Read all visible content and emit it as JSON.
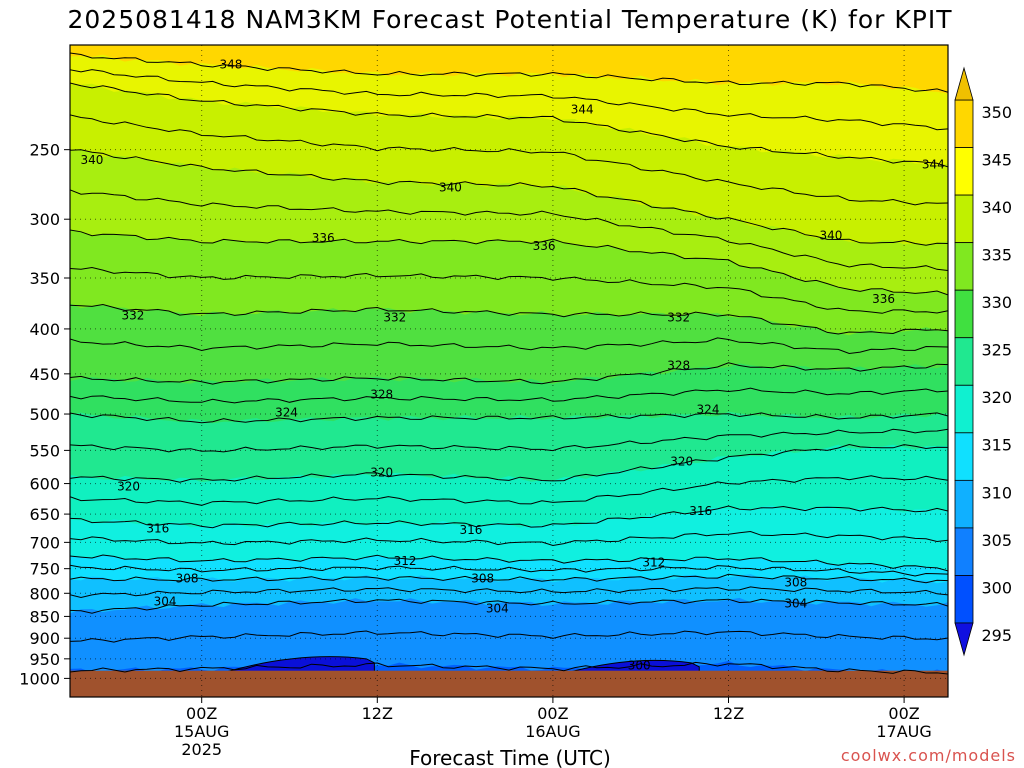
{
  "title": "2025081418 NAM3KM Forecast Potential Temperature (K) for KPIT",
  "credit": "coolwx.com/models",
  "colors": {
    "ground": "#a0522d",
    "fills": [
      "#1010e0",
      "#0050ff",
      "#1080ff",
      "#10b0ff",
      "#10e0ff",
      "#10ffd0",
      "#10f0a0",
      "#20e060",
      "#40e040",
      "#90f020",
      "#c0f000",
      "#ffff00",
      "#ffd700"
    ]
  },
  "chart_data": {
    "type": "heatmap",
    "title": "2025081418 NAM3KM Forecast Potential Temperature (K) for KPIT",
    "xlabel": "Forecast Time (UTC)",
    "ylabel": "",
    "x_axis": {
      "unit": "forecast hour",
      "range_hours": [
        -3,
        57
      ],
      "ticks": [
        {
          "hour": 6,
          "label": [
            "00Z",
            "15AUG",
            "2025"
          ]
        },
        {
          "hour": 18,
          "label": [
            "12Z"
          ]
        },
        {
          "hour": 30,
          "label": [
            "00Z",
            "16AUG"
          ]
        },
        {
          "hour": 42,
          "label": [
            "12Z"
          ]
        },
        {
          "hour": 54,
          "label": [
            "00Z",
            "17AUG"
          ]
        }
      ]
    },
    "y_axis": {
      "unit": "hPa",
      "log_scale": true,
      "range": [
        1050,
        190
      ],
      "ticks": [
        250,
        300,
        350,
        400,
        450,
        500,
        550,
        600,
        650,
        700,
        750,
        800,
        850,
        900,
        950,
        1000
      ]
    },
    "grid": true,
    "colorbar": {
      "levels": [
        295,
        300,
        305,
        310,
        315,
        320,
        325,
        330,
        335,
        340,
        345,
        350
      ],
      "labels": [
        "350",
        "345",
        "340",
        "335",
        "330",
        "325",
        "320",
        "315",
        "310",
        "305",
        "300",
        "295"
      ],
      "extend": "both"
    },
    "contour_interval": 2,
    "approx_isentrope_pressure": {
      "hours": [
        -3,
        6,
        18,
        30,
        42,
        50,
        57
      ],
      "levels": [
        {
          "theta": 300,
          "p": [
            980,
            975,
            965,
            975,
            962,
            980,
            985
          ]
        },
        {
          "theta": 304,
          "p": [
            840,
            825,
            815,
            822,
            815,
            820,
            825
          ]
        },
        {
          "theta": 308,
          "p": [
            770,
            772,
            768,
            772,
            765,
            770,
            775
          ]
        },
        {
          "theta": 312,
          "p": [
            725,
            735,
            728,
            735,
            730,
            740,
            750
          ]
        },
        {
          "theta": 316,
          "p": [
            660,
            670,
            665,
            670,
            640,
            640,
            645
          ]
        },
        {
          "theta": 320,
          "p": [
            590,
            595,
            585,
            595,
            560,
            545,
            545
          ]
        },
        {
          "theta": 324,
          "p": [
            500,
            510,
            505,
            505,
            500,
            505,
            500
          ]
        },
        {
          "theta": 328,
          "p": [
            455,
            460,
            455,
            460,
            440,
            445,
            440
          ]
        },
        {
          "theta": 332,
          "p": [
            375,
            385,
            380,
            385,
            385,
            405,
            400
          ]
        },
        {
          "theta": 336,
          "p": [
            310,
            318,
            318,
            318,
            335,
            360,
            365
          ]
        },
        {
          "theta": 340,
          "p": [
            250,
            262,
            272,
            275,
            300,
            318,
            320
          ]
        },
        {
          "theta": 344,
          "p": [
            210,
            220,
            228,
            230,
            248,
            255,
            260
          ]
        },
        {
          "theta": 348,
          "p": [
            195,
            200,
            205,
            205,
            210,
            210,
            215
          ]
        }
      ]
    },
    "contour_labels": [
      {
        "text": "348",
        "hour": 8,
        "p": 200
      },
      {
        "text": "344",
        "hour": 32,
        "p": 225
      },
      {
        "text": "344",
        "hour": 56,
        "p": 260
      },
      {
        "text": "340",
        "hour": -1.5,
        "p": 257
      },
      {
        "text": "340",
        "hour": 23,
        "p": 276
      },
      {
        "text": "340",
        "hour": 49,
        "p": 313
      },
      {
        "text": "336",
        "hour": 14.3,
        "p": 315
      },
      {
        "text": "336",
        "hour": 29.4,
        "p": 322
      },
      {
        "text": "336",
        "hour": 52.6,
        "p": 370
      },
      {
        "text": "332",
        "hour": 1.3,
        "p": 386
      },
      {
        "text": "332",
        "hour": 19.2,
        "p": 388
      },
      {
        "text": "332",
        "hour": 38.6,
        "p": 388
      },
      {
        "text": "328",
        "hour": 18.3,
        "p": 475
      },
      {
        "text": "328",
        "hour": 38.6,
        "p": 440
      },
      {
        "text": "324",
        "hour": 11.8,
        "p": 498
      },
      {
        "text": "324",
        "hour": 40.6,
        "p": 494
      },
      {
        "text": "320",
        "hour": 1,
        "p": 605
      },
      {
        "text": "320",
        "hour": 18.3,
        "p": 583
      },
      {
        "text": "320",
        "hour": 38.8,
        "p": 566
      },
      {
        "text": "316",
        "hour": 3,
        "p": 675
      },
      {
        "text": "316",
        "hour": 24.4,
        "p": 678
      },
      {
        "text": "316",
        "hour": 40.1,
        "p": 645
      },
      {
        "text": "312",
        "hour": 19.9,
        "p": 735
      },
      {
        "text": "312",
        "hour": 36.9,
        "p": 738
      },
      {
        "text": "308",
        "hour": 5,
        "p": 770
      },
      {
        "text": "308",
        "hour": 25.2,
        "p": 770
      },
      {
        "text": "308",
        "hour": 46.6,
        "p": 778
      },
      {
        "text": "304",
        "hour": 3.5,
        "p": 817
      },
      {
        "text": "304",
        "hour": 26.2,
        "p": 833
      },
      {
        "text": "304",
        "hour": 46.6,
        "p": 822
      },
      {
        "text": "300",
        "hour": 35.9,
        "p": 967
      }
    ]
  }
}
